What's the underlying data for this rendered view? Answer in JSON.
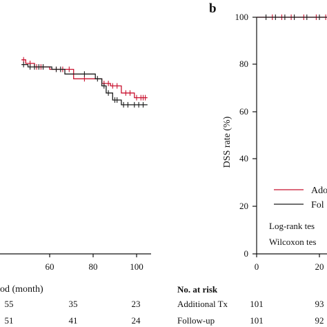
{
  "colors": {
    "additional": "#c8102e",
    "follow": "#1a1a1a",
    "axis": "#111111"
  },
  "left_panel": {
    "xlabel_visible": "od (month)",
    "x_ticks": [
      "60",
      "80",
      "100"
    ],
    "risk_rows": [
      {
        "values": [
          "55",
          "35",
          "23"
        ]
      },
      {
        "values": [
          "51",
          "41",
          "24"
        ]
      }
    ]
  },
  "right_panel": {
    "panel_label": "b",
    "ylabel": "DSS rate (%)",
    "y_ticks": [
      "0",
      "20",
      "40",
      "60",
      "80",
      "100"
    ],
    "x_ticks": [
      "0",
      "20"
    ],
    "legend": [
      {
        "label": "Ado",
        "color_key": "additional"
      },
      {
        "label": "Fol",
        "color_key": "follow"
      }
    ],
    "tests": [
      "Log-rank tes",
      "Wilcoxon tes"
    ],
    "risk_title": "No. at risk",
    "risk_rows": [
      {
        "label": "Additional Tx",
        "values": [
          "101",
          "93"
        ]
      },
      {
        "label": "Follow-up",
        "values": [
          "101",
          "92"
        ]
      }
    ]
  },
  "chart_data": [
    {
      "type": "line",
      "title": "",
      "xlabel": "od (month)",
      "ylabel": "",
      "xlim": [
        47,
        105
      ],
      "ylim": [
        0,
        100
      ],
      "x_ticks": [
        60,
        80,
        100
      ],
      "series": [
        {
          "color": "additional",
          "step": [
            [
              47,
              82
            ],
            [
              49,
              82
            ],
            [
              49,
              80.5
            ],
            [
              53,
              80.5
            ],
            [
              53,
              79
            ],
            [
              60,
              79
            ],
            [
              60,
              78
            ],
            [
              71,
              78
            ],
            [
              71,
              74
            ],
            [
              84,
              74
            ],
            [
              84,
              72
            ],
            [
              88,
              72
            ],
            [
              88,
              71
            ],
            [
              93,
              71
            ],
            [
              93,
              68
            ],
            [
              99,
              68
            ],
            [
              99,
              66
            ],
            [
              105,
              66
            ]
          ],
          "censor": [
            [
              48,
              82
            ],
            [
              51,
              80.5
            ],
            [
              54,
              79
            ],
            [
              56,
              79
            ],
            [
              57,
              79
            ],
            [
              63,
              78
            ],
            [
              66,
              78
            ],
            [
              69,
              78
            ],
            [
              76,
              74
            ],
            [
              85,
              72
            ],
            [
              87,
              72
            ],
            [
              89,
              71
            ],
            [
              91,
              71
            ],
            [
              95,
              68
            ],
            [
              97,
              68
            ],
            [
              100,
              66
            ],
            [
              102,
              66
            ],
            [
              103,
              66
            ],
            [
              104,
              66
            ]
          ]
        },
        {
          "color": "follow",
          "step": [
            [
              47,
              80
            ],
            [
              50,
              80
            ],
            [
              50,
              79
            ],
            [
              61,
              79
            ],
            [
              61,
              78
            ],
            [
              67,
              78
            ],
            [
              67,
              76
            ],
            [
              81,
              76
            ],
            [
              81,
              74
            ],
            [
              84,
              74
            ],
            [
              84,
              71
            ],
            [
              86,
              71
            ],
            [
              86,
              68
            ],
            [
              89,
              68
            ],
            [
              89,
              65
            ],
            [
              93,
              65
            ],
            [
              93,
              63
            ],
            [
              105,
              63
            ]
          ],
          "censor": [
            [
              48,
              80
            ],
            [
              51,
              79
            ],
            [
              53,
              79
            ],
            [
              55,
              79
            ],
            [
              57,
              79
            ],
            [
              63,
              78
            ],
            [
              65,
              78
            ],
            [
              76,
              76
            ],
            [
              82,
              74
            ],
            [
              85,
              71
            ],
            [
              87,
              68
            ],
            [
              90,
              65
            ],
            [
              91,
              65
            ],
            [
              94,
              63
            ],
            [
              96,
              63
            ],
            [
              99,
              63
            ],
            [
              101,
              63
            ],
            [
              103,
              63
            ]
          ]
        }
      ]
    },
    {
      "type": "line",
      "title": "",
      "xlabel": "",
      "ylabel": "DSS rate (%)",
      "xlim": [
        0,
        28
      ],
      "ylim": [
        0,
        100
      ],
      "x_ticks": [
        0,
        20
      ],
      "y_ticks": [
        0,
        20,
        40,
        60,
        80,
        100
      ],
      "series": [
        {
          "color": "additional",
          "step": [
            [
              0,
              100
            ],
            [
              28,
              100
            ]
          ],
          "censor": [
            [
              5,
              100
            ],
            [
              8,
              100
            ],
            [
              11,
              100
            ],
            [
              15,
              100
            ],
            [
              19,
              100
            ],
            [
              22,
              100
            ],
            [
              24,
              100
            ],
            [
              26,
              100
            ]
          ]
        },
        {
          "color": "follow",
          "step": [
            [
              0,
              100
            ],
            [
              28,
              100
            ]
          ],
          "censor": [
            [
              3,
              100
            ],
            [
              6,
              100
            ],
            [
              9,
              100
            ],
            [
              12,
              100
            ],
            [
              16,
              100
            ],
            [
              20,
              100
            ],
            [
              23,
              100
            ],
            [
              25,
              100
            ]
          ]
        }
      ]
    }
  ]
}
